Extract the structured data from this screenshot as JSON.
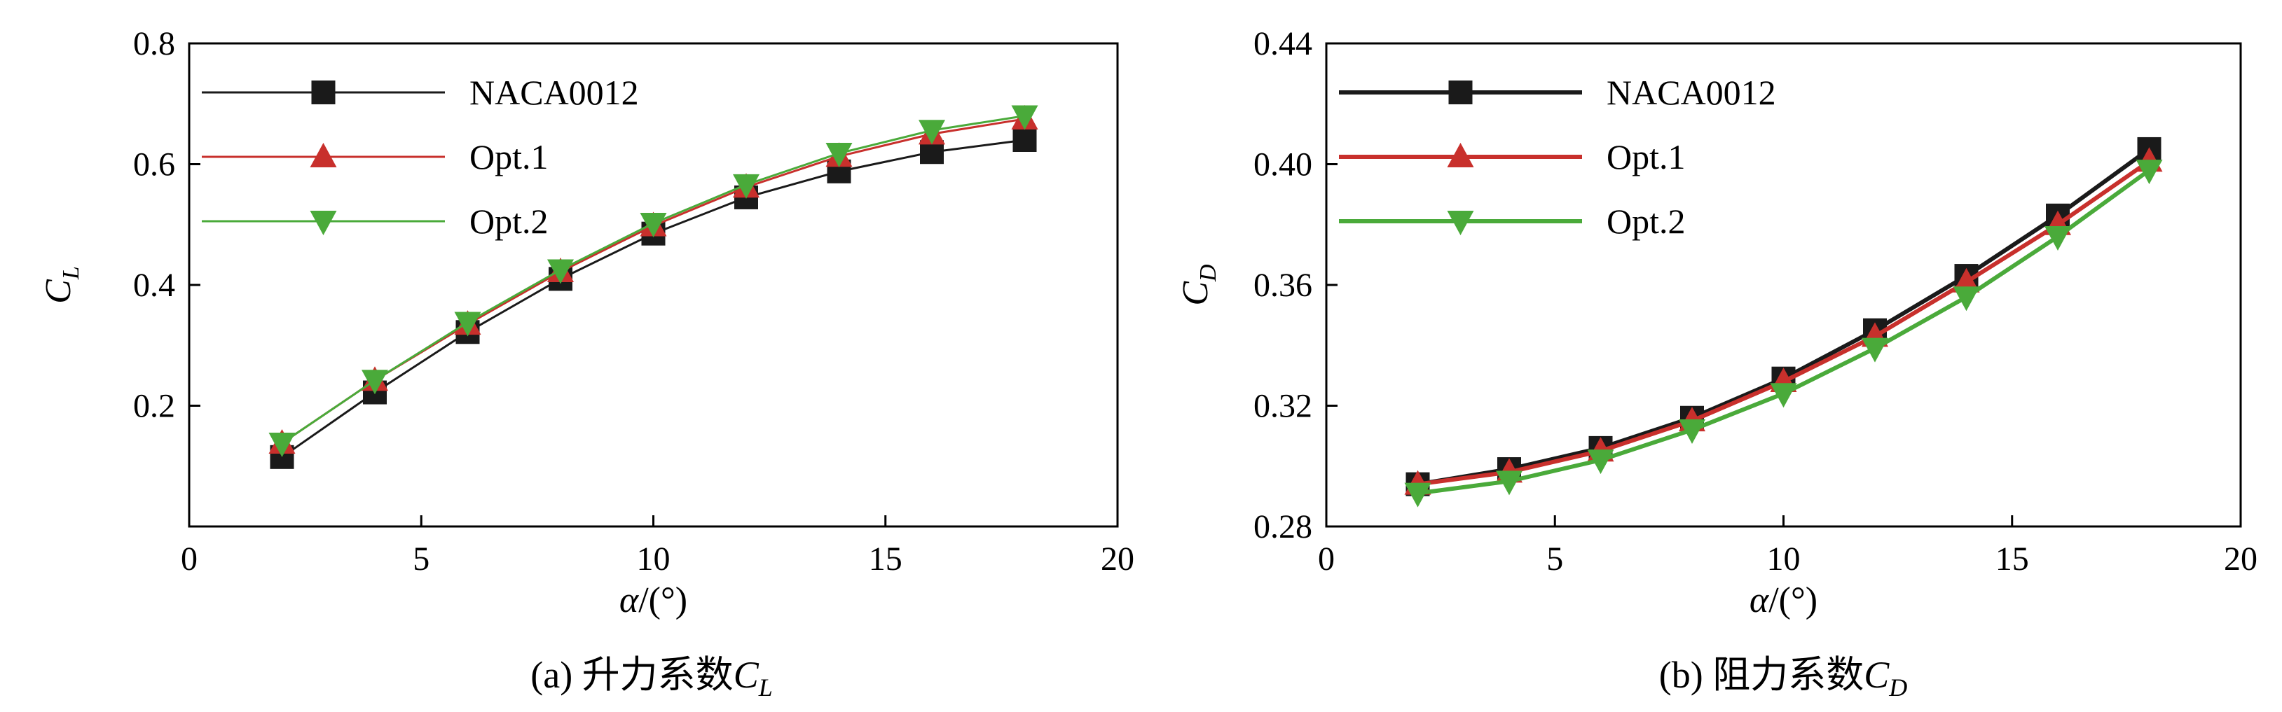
{
  "chart_data": [
    {
      "type": "line",
      "caption": {
        "prefix": "(a) 升力系数",
        "symbol": "C",
        "sub": "L"
      },
      "xlabel": {
        "symbol": "α",
        "unit": "/(°)"
      },
      "ylabel": {
        "symbol": "C",
        "sub": "L"
      },
      "xlim": [
        0,
        20
      ],
      "ylim": [
        0.0,
        0.8
      ],
      "xticks": [
        "0",
        "5",
        "10",
        "15",
        "20"
      ],
      "yticks": [
        "0.2",
        "0.4",
        "0.6",
        "0.8"
      ],
      "ytick_values": [
        0.2,
        0.4,
        0.6,
        0.8
      ],
      "xtick_values": [
        0,
        5,
        10,
        15,
        20
      ],
      "x": [
        2,
        4,
        6,
        8,
        10,
        12,
        14,
        16,
        18
      ],
      "legend_position": "top-left",
      "series": [
        {
          "name": "NACA0012",
          "marker": "square",
          "color": "#1a1a1a",
          "values": [
            0.115,
            0.222,
            0.322,
            0.41,
            0.485,
            0.545,
            0.588,
            0.62,
            0.64
          ]
        },
        {
          "name": "Opt.1",
          "marker": "triangle-up",
          "color": "#c8302c",
          "values": [
            0.138,
            0.242,
            0.335,
            0.422,
            0.498,
            0.562,
            0.613,
            0.65,
            0.675
          ]
        },
        {
          "name": "Opt.2",
          "marker": "triangle-down",
          "color": "#4aaa3a",
          "values": [
            0.138,
            0.242,
            0.338,
            0.425,
            0.502,
            0.566,
            0.618,
            0.656,
            0.68
          ]
        }
      ]
    },
    {
      "type": "line",
      "caption": {
        "prefix": "(b) 阻力系数",
        "symbol": "C",
        "sub": "D"
      },
      "xlabel": {
        "symbol": "α",
        "unit": "/(°)"
      },
      "ylabel": {
        "symbol": "C",
        "sub": "D"
      },
      "xlim": [
        0,
        20
      ],
      "ylim": [
        0.28,
        0.44
      ],
      "xticks": [
        "0",
        "5",
        "10",
        "15",
        "20"
      ],
      "yticks": [
        "0.28",
        "0.32",
        "0.36",
        "0.40",
        "0.44"
      ],
      "ytick_values": [
        0.28,
        0.32,
        0.36,
        0.4,
        0.44
      ],
      "xtick_values": [
        0,
        5,
        10,
        15,
        20
      ],
      "x": [
        2,
        4,
        6,
        8,
        10,
        12,
        14,
        16,
        18
      ],
      "legend_position": "top-left",
      "series": [
        {
          "name": "NACA0012",
          "marker": "square",
          "color": "#1a1a1a",
          "values": [
            0.294,
            0.299,
            0.306,
            0.316,
            0.329,
            0.345,
            0.363,
            0.383,
            0.405
          ]
        },
        {
          "name": "Opt.1",
          "marker": "triangle-up",
          "color": "#c8302c",
          "values": [
            0.294,
            0.298,
            0.305,
            0.315,
            0.328,
            0.343,
            0.361,
            0.38,
            0.401
          ]
        },
        {
          "name": "Opt.2",
          "marker": "triangle-down",
          "color": "#4aaa3a",
          "values": [
            0.291,
            0.295,
            0.302,
            0.312,
            0.324,
            0.339,
            0.356,
            0.376,
            0.398
          ]
        }
      ]
    }
  ]
}
